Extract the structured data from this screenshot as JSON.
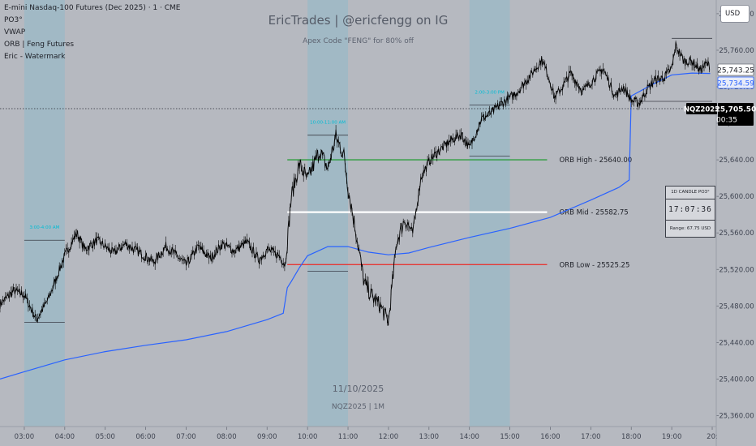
{
  "legend": {
    "symbol_title": "E-mini Nasdaq-100 Futures (Dec 2025) · 1 · CME",
    "indicators": [
      "PO3°",
      "VWAP",
      "ORB | Feng Futures",
      "Eric - Watermark"
    ]
  },
  "watermark": {
    "title": "EricTrades | @ericfengg on IG",
    "subtitle": "Apex Code \"FENG\" for 80% off",
    "date": "11/10/2025",
    "ticker": "NQZ2025 | 1M"
  },
  "currency_button": "USD",
  "candle_panel": {
    "title": "1D CANDLE PO3°",
    "countdown": "17:07:36",
    "range": "Range: 67.75 USD"
  },
  "price_tags": {
    "upper": "25,743.25",
    "vwap": "25,734.59",
    "last_symbol": "NQZ2025",
    "last_price": "25,705.50",
    "last_countdown": "00:35"
  },
  "colors": {
    "background": "#b6b9c0",
    "session_box": "#9db9c6",
    "candles": "#000000",
    "vwap": "#2962ff",
    "orb_high": "#2e9e3e",
    "orb_mid": "#ffffff",
    "orb_low": "#e53935",
    "session_label": "#00bcd4"
  },
  "chart_data": {
    "type": "line",
    "title": "E-mini Nasdaq-100 Futures (Dec 2025) · 1 · CME",
    "xlabel": "",
    "ylabel": "",
    "x_ticks": [
      "03:00",
      "04:00",
      "05:00",
      "06:00",
      "07:00",
      "08:00",
      "09:00",
      "10:00",
      "11:00",
      "12:00",
      "13:00",
      "14:00",
      "15:00",
      "16:00",
      "17:00",
      "18:00",
      "19:00",
      "20:"
    ],
    "y_ticks": [
      25360,
      25400,
      25440,
      25480,
      25520,
      25560,
      25600,
      25640,
      25680,
      25720,
      25760,
      25800
    ],
    "y_tick_labels": [
      "25,360.00",
      "25,400.00",
      "25,440.00",
      "25,480.00",
      "25,520.00",
      "25,560.00",
      "25,600.00",
      "25,640.00",
      "25,680.00",
      "25,720.00",
      "25,760.00",
      "25,800.00"
    ],
    "ylim": [
      25348,
      25815
    ],
    "xlim": [
      2.4,
      20.1
    ],
    "grid": false,
    "series": [
      {
        "kind": "price",
        "x": [
          2.4,
          2.75,
          3.0,
          3.3,
          3.6,
          4.0,
          4.3,
          4.5,
          4.8,
          5.2,
          5.5,
          5.9,
          6.2,
          6.5,
          6.7,
          7.0,
          7.3,
          7.6,
          7.9,
          8.2,
          8.5,
          8.8,
          9.0,
          9.3,
          9.45,
          9.6,
          9.8,
          10.0,
          10.3,
          10.5,
          10.7,
          10.9,
          11.0,
          11.2,
          11.4,
          11.6,
          11.8,
          12.0,
          12.2,
          12.4,
          12.6,
          12.8,
          13.0,
          13.2,
          13.5,
          13.8,
          14.0,
          14.3,
          14.5,
          14.8,
          15.0,
          15.2,
          15.5,
          15.8,
          16.0,
          16.1,
          16.3,
          16.5,
          16.8,
          17.0,
          17.3,
          17.6,
          17.8,
          18.0,
          18.2,
          18.4,
          18.6,
          18.8,
          19.0,
          19.1,
          19.3,
          19.5,
          19.7,
          19.85,
          19.95
        ],
        "y": [
          25482,
          25497,
          25492,
          25465,
          25488,
          25535,
          25560,
          25542,
          25552,
          25538,
          25548,
          25537,
          25528,
          25545,
          25538,
          25525,
          25545,
          25532,
          25548,
          25540,
          25550,
          25530,
          25542,
          25535,
          25525,
          25600,
          25635,
          25618,
          25650,
          25630,
          25665,
          25645,
          25610,
          25560,
          25505,
          25490,
          25480,
          25462,
          25550,
          25575,
          25560,
          25620,
          25638,
          25648,
          25660,
          25668,
          25653,
          25685,
          25690,
          25702,
          25708,
          25715,
          25732,
          25750,
          25725,
          25708,
          25720,
          25735,
          25715,
          25725,
          25740,
          25710,
          25720,
          25705,
          25702,
          25718,
          25728,
          25730,
          25740,
          25765,
          25748,
          25748,
          25738,
          25745,
          25743
        ]
      },
      {
        "name": "VWAP",
        "x": [
          2.4,
          3.0,
          4.0,
          5.0,
          6.0,
          7.0,
          8.0,
          9.0,
          9.4,
          9.5,
          9.6,
          9.8,
          10.0,
          10.5,
          11.0,
          11.5,
          12.0,
          12.5,
          13.0,
          14.0,
          15.0,
          16.0,
          17.0,
          17.7,
          17.95,
          18.0,
          18.5,
          19.0,
          19.5,
          19.95
        ],
        "y": [
          25400,
          25408,
          25421,
          25430,
          25437,
          25443,
          25452,
          25465,
          25472,
          25500,
          25507,
          25522,
          25535,
          25545,
          25545,
          25539,
          25536,
          25538,
          25544,
          25555,
          25565,
          25577,
          25596,
          25610,
          25618,
          25710,
          25722,
          25733,
          25735,
          25734.59
        ]
      }
    ],
    "reference_lines": [
      {
        "label": "ORB High - 25640.00",
        "value": 25640.0,
        "from": 9.5,
        "to": 15.92
      },
      {
        "label": "ORB Mid - 25582.75",
        "value": 25582.75,
        "from": 9.5,
        "to": 15.92
      },
      {
        "label": "ORB Low - 25525.25",
        "value": 25525.25,
        "from": 9.5,
        "to": 15.92
      }
    ],
    "sessions": [
      {
        "label": "3:00-4:00 AM",
        "from": 3.0,
        "to": 4.0,
        "high": 25552,
        "low": 25462
      },
      {
        "label": "10:00-11:00 AM",
        "from": 10.0,
        "to": 11.0,
        "high": 25667,
        "low": 25518
      },
      {
        "label": "2:00-3:00 PM",
        "from": 14.0,
        "to": 15.0,
        "high": 25700,
        "low": 25644
      }
    ],
    "extra_levels": [
      {
        "value": 25773,
        "from": 19.0,
        "to": 20.0
      },
      {
        "value": 25704,
        "from": 18.2,
        "to": 20.0
      }
    ]
  }
}
